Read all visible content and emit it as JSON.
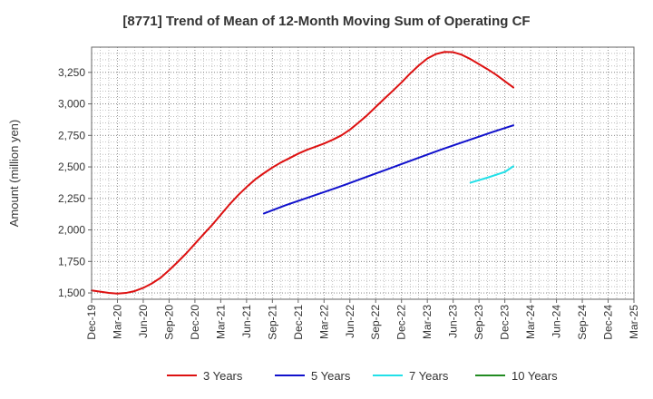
{
  "chart_data": {
    "type": "line",
    "title": "[8771]  Trend of Mean of 12-Month Moving Sum of Operating CF",
    "xlabel": "",
    "ylabel": "Amount (million yen)",
    "ylim": [
      1450,
      3450
    ],
    "yticks": [
      1500,
      1750,
      2000,
      2250,
      2500,
      2750,
      3000,
      3250
    ],
    "ytick_labels": [
      "1,500",
      "1,750",
      "2,000",
      "2,250",
      "2,500",
      "2,750",
      "3,000",
      "3,250"
    ],
    "x_categories": [
      "Dec-19",
      "Mar-20",
      "Jun-20",
      "Sep-20",
      "Dec-20",
      "Mar-21",
      "Jun-21",
      "Sep-21",
      "Dec-21",
      "Mar-22",
      "Jun-22",
      "Sep-22",
      "Dec-22",
      "Mar-23",
      "Jun-23",
      "Sep-23",
      "Dec-23",
      "Mar-24",
      "Jun-24",
      "Sep-24",
      "Dec-24",
      "Mar-25"
    ],
    "grid": true,
    "legend_position": "bottom",
    "series": [
      {
        "name": "3 Years",
        "color": "#dd1111",
        "points": [
          [
            0,
            1520
          ],
          [
            0.33,
            1510
          ],
          [
            0.67,
            1500
          ],
          [
            1,
            1495
          ],
          [
            1.33,
            1500
          ],
          [
            1.67,
            1515
          ],
          [
            2,
            1540
          ],
          [
            2.33,
            1575
          ],
          [
            2.67,
            1620
          ],
          [
            3,
            1680
          ],
          [
            3.33,
            1745
          ],
          [
            3.67,
            1815
          ],
          [
            4,
            1890
          ],
          [
            4.33,
            1965
          ],
          [
            4.67,
            2040
          ],
          [
            5,
            2120
          ],
          [
            5.33,
            2200
          ],
          [
            5.67,
            2275
          ],
          [
            6,
            2340
          ],
          [
            6.33,
            2400
          ],
          [
            6.67,
            2450
          ],
          [
            7,
            2495
          ],
          [
            7.33,
            2535
          ],
          [
            7.67,
            2570
          ],
          [
            8,
            2605
          ],
          [
            8.33,
            2635
          ],
          [
            8.67,
            2660
          ],
          [
            9,
            2685
          ],
          [
            9.33,
            2715
          ],
          [
            9.67,
            2750
          ],
          [
            10,
            2795
          ],
          [
            10.33,
            2850
          ],
          [
            10.67,
            2910
          ],
          [
            11,
            2975
          ],
          [
            11.33,
            3040
          ],
          [
            11.67,
            3105
          ],
          [
            12,
            3170
          ],
          [
            12.33,
            3240
          ],
          [
            12.67,
            3305
          ],
          [
            13,
            3360
          ],
          [
            13.33,
            3395
          ],
          [
            13.67,
            3412
          ],
          [
            14,
            3410
          ],
          [
            14.33,
            3390
          ],
          [
            14.67,
            3355
          ],
          [
            15,
            3315
          ],
          [
            15.33,
            3275
          ],
          [
            15.67,
            3230
          ],
          [
            16,
            3180
          ],
          [
            16.33,
            3130
          ]
        ]
      },
      {
        "name": "5 Years",
        "color": "#1111cc",
        "points": [
          [
            6.67,
            2130
          ],
          [
            7.5,
            2195
          ],
          [
            8.5,
            2265
          ],
          [
            9.5,
            2335
          ],
          [
            10.5,
            2410
          ],
          [
            11.5,
            2485
          ],
          [
            12.5,
            2560
          ],
          [
            13.5,
            2635
          ],
          [
            14.5,
            2705
          ],
          [
            15.5,
            2775
          ],
          [
            16.33,
            2830
          ]
        ]
      },
      {
        "name": "7 Years",
        "color": "#22e0e8",
        "points": [
          [
            14.67,
            2375
          ],
          [
            15.33,
            2415
          ],
          [
            16,
            2460
          ],
          [
            16.33,
            2505
          ]
        ]
      },
      {
        "name": "10 Years",
        "color": "#228b22",
        "points": []
      }
    ]
  }
}
